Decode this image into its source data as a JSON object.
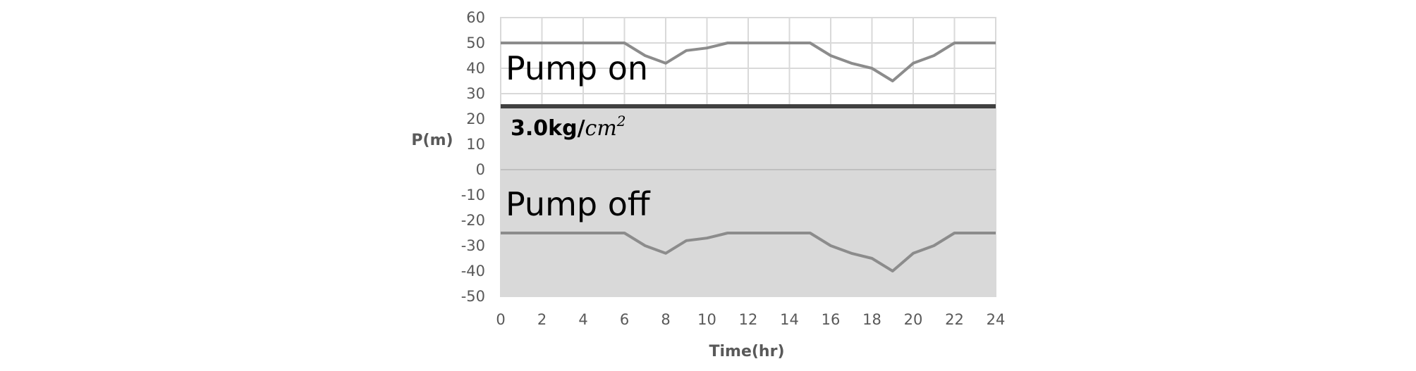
{
  "chart_data": {
    "type": "line",
    "xlabel": "Time(hr)",
    "ylabel": "P(m)",
    "xlim": [
      0,
      24
    ],
    "ylim": [
      -50,
      60
    ],
    "x_ticks": [
      "0",
      "2",
      "4",
      "6",
      "8",
      "10",
      "12",
      "14",
      "16",
      "18",
      "20",
      "22",
      "24"
    ],
    "y_ticks": [
      "60",
      "50",
      "40",
      "30",
      "20",
      "10",
      "0",
      "-10",
      "-20",
      "-30",
      "-40",
      "-50"
    ],
    "grid": true,
    "threshold": {
      "value": 25,
      "label_number": "3.0kg/",
      "label_unit": "cm",
      "label_exponent": "2"
    },
    "shaded_region_below_threshold": true,
    "annotations": [
      "Pump on",
      "Pump off"
    ],
    "series": [
      {
        "x": [
          0,
          6,
          7,
          8,
          9,
          10,
          11,
          15,
          16,
          17,
          18,
          19,
          20,
          21,
          22,
          24
        ],
        "values": [
          50,
          50,
          45,
          42,
          47,
          48,
          50,
          50,
          45,
          42,
          40,
          35,
          42,
          45,
          50,
          50
        ]
      },
      {
        "x": [
          0,
          6,
          7,
          8,
          9,
          10,
          11,
          15,
          16,
          17,
          18,
          19,
          20,
          21,
          22,
          24
        ],
        "values": [
          -25,
          -25,
          -30,
          -33,
          -28,
          -27,
          -25,
          -25,
          -30,
          -33,
          -35,
          -40,
          -33,
          -30,
          -25,
          -25
        ]
      }
    ]
  },
  "colors": {
    "series_line": "#8c8c8c",
    "threshold_line": "#404040",
    "shade": "#d9d9d9",
    "grid": "#d9d9d9",
    "zero_line": "#bfbfbf",
    "tick_text": "#595959"
  }
}
